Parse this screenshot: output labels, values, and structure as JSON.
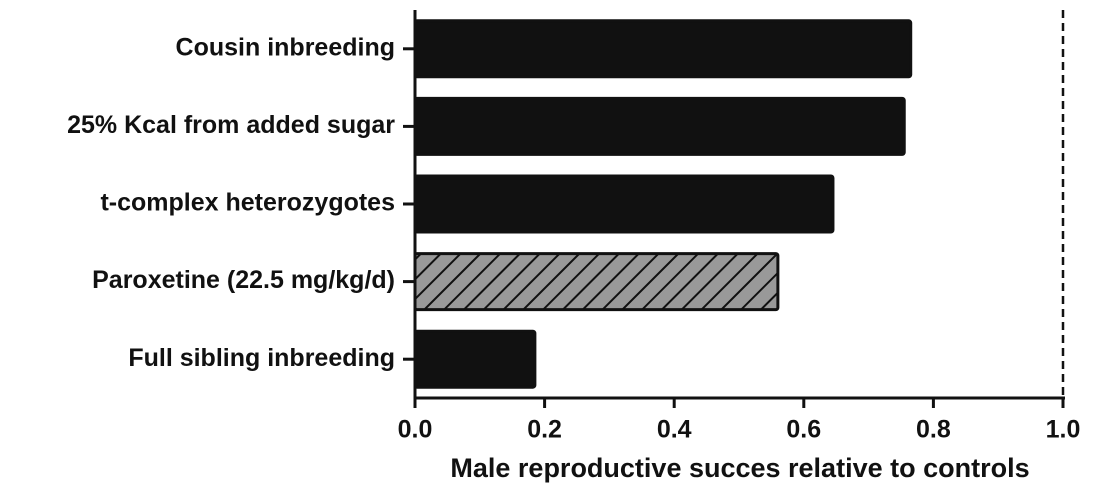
{
  "chart_data": {
    "type": "barh",
    "categories": [
      "Cousin inbreeding",
      "25% Kcal from added sugar",
      "t-complex heterozygotes",
      "Paroxetine (22.5 mg/kg/d)",
      "Full sibling inbreeding"
    ],
    "values": [
      0.765,
      0.755,
      0.645,
      0.56,
      0.185
    ],
    "colors": [
      "#111111",
      "#111111",
      "#111111",
      "#999999",
      "#111111"
    ],
    "hatch": [
      false,
      false,
      false,
      true,
      false
    ],
    "xlabel": "Male reproductive succes relative to controls",
    "xlim": [
      0,
      1
    ],
    "xticks": [
      {
        "value": 0,
        "label": "0.0"
      },
      0.2,
      0.4,
      0.6,
      0.8,
      {
        "value": 1,
        "label": "1.0"
      }
    ],
    "refline": 1
  }
}
